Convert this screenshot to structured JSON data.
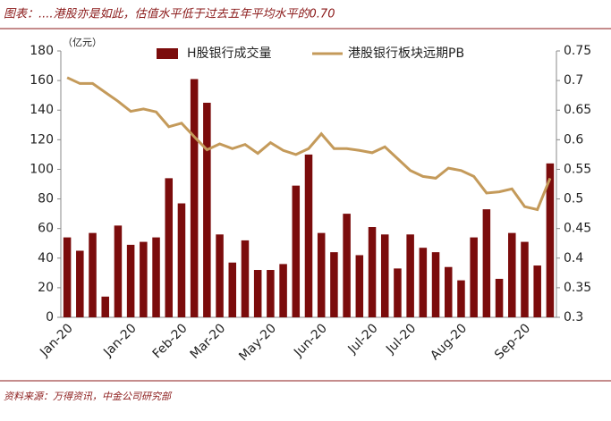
{
  "chart_data": {
    "type": "bar-line",
    "title": "图表：....港股亦是如此，估值水平低于过去五年平均水平的0.70",
    "y_label": "（亿元）",
    "source": "资料来源：万得资讯，中金公司研究部",
    "categories": [
      "Jan-20",
      null,
      null,
      null,
      null,
      "Jan-20",
      null,
      null,
      null,
      "Feb-20",
      null,
      null,
      "Mar-20",
      null,
      null,
      null,
      "May-20",
      null,
      null,
      null,
      "Jun-20",
      null,
      null,
      null,
      "Jul-20",
      null,
      null,
      "Jul-20",
      null,
      null,
      null,
      "Aug-20",
      null,
      null,
      null,
      null,
      "Sep-20",
      null,
      null
    ],
    "series": [
      {
        "name": "H股银行成交量",
        "type": "bar",
        "color": "#7b0c0c",
        "values": [
          54,
          45,
          57,
          14,
          62,
          49,
          51,
          54,
          94,
          77,
          161,
          145,
          56,
          37,
          52,
          32,
          32,
          36,
          89,
          110,
          57,
          44,
          70,
          42,
          61,
          56,
          33,
          56,
          47,
          44,
          34,
          25,
          54,
          73,
          26,
          57,
          51,
          35,
          104
        ]
      },
      {
        "name": "港股银行板块远期PB",
        "type": "line",
        "color": "#c49a5a",
        "axis": "y2",
        "values": [
          0.705,
          0.695,
          0.695,
          0.68,
          0.665,
          0.648,
          0.652,
          0.647,
          0.622,
          0.628,
          0.605,
          0.583,
          0.593,
          0.585,
          0.592,
          0.577,
          0.595,
          0.582,
          0.575,
          0.585,
          0.61,
          0.585,
          0.585,
          0.582,
          0.578,
          0.588,
          0.568,
          0.548,
          0.538,
          0.535,
          0.552,
          0.548,
          0.538,
          0.51,
          0.512,
          0.517,
          0.487,
          0.482,
          0.535
        ]
      }
    ],
    "ylim": [
      0,
      180
    ],
    "yticks": [
      0,
      20,
      40,
      60,
      80,
      100,
      120,
      140,
      160,
      180
    ],
    "y2lim": [
      0.3,
      0.75
    ],
    "y2ticks": [
      0.3,
      0.35,
      0.4,
      0.45,
      0.5,
      0.55,
      0.6,
      0.65,
      0.7,
      0.75
    ],
    "grid": false,
    "legend": "top"
  }
}
